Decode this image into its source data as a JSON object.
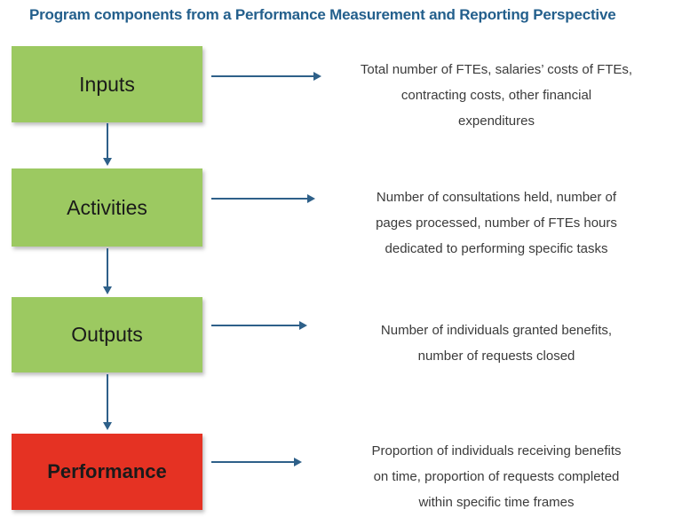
{
  "title": "Program components from a Performance Measurement and Reporting Perspective",
  "colors": {
    "title_text": "#235F8C",
    "arrow": "#2E6089",
    "box_green": "#9CC961",
    "box_red": "#E53223",
    "box_label_text": "#1A1A1A",
    "description_text": "#3B3B3B"
  },
  "rows": [
    {
      "label": "Inputs",
      "box_color": "#9CC961",
      "description": "Total number of FTEs, salaries’ costs of FTEs,\ncontracting costs, other financial\nexpenditures"
    },
    {
      "label": "Activities",
      "box_color": "#9CC961",
      "description": "Number of consultations held, number of\npages processed, number of FTEs hours\ndedicated to performing specific tasks"
    },
    {
      "label": "Outputs",
      "box_color": "#9CC961",
      "description": "Number of individuals granted benefits,\nnumber of requests closed"
    },
    {
      "label": "Performance",
      "box_color": "#E53223",
      "description": "Proportion of individuals receiving benefits\non time, proportion of requests completed\nwithin specific time frames"
    }
  ]
}
